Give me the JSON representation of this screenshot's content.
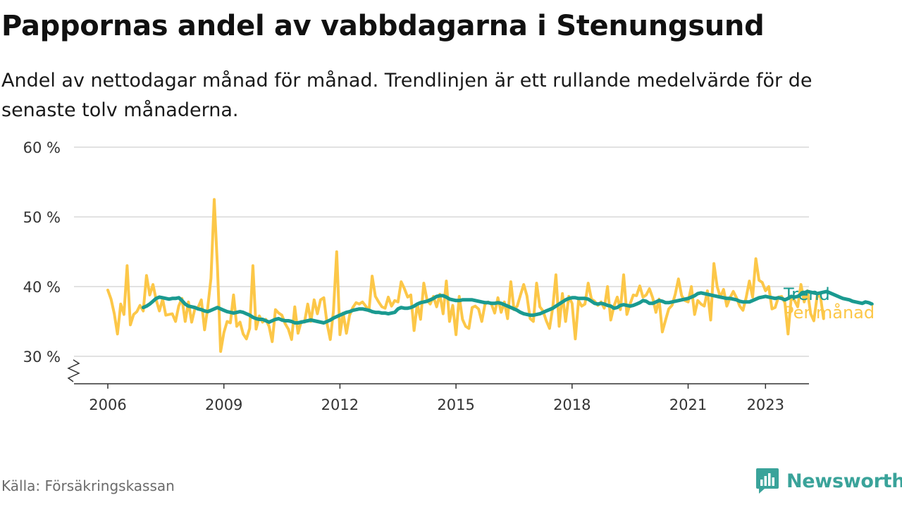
{
  "header": {
    "title": "Pappornas andel av vabbdagarna i Stenungsund",
    "subtitle": "Andel av nettodagar månad för månad. Trendlinjen är ett rullande medelvärde för de senaste tolv månaderna."
  },
  "footer": {
    "source": "Källa: Försäkringskassan",
    "brand": "Newsworthy",
    "brand_icon": "bar-chart-logo-icon"
  },
  "colors": {
    "monthly": "#fcc748",
    "trend": "#1a9a90",
    "grid": "#d9d9d9",
    "axis": "#333333",
    "brand": "#3aa39a"
  },
  "chart_data": {
    "type": "line",
    "title": "Pappornas andel av vabbdagarna i Stenungsund",
    "y_ticks": [
      30,
      40,
      50,
      60
    ],
    "y_tick_labels": [
      "30 %",
      "40 %",
      "50 %",
      "60 %"
    ],
    "ylim": [
      26,
      60
    ],
    "y_axis_break": true,
    "x_ticks": [
      2006,
      2009,
      2012,
      2015,
      2018,
      2021,
      2023
    ],
    "xlim": [
      2005.1,
      2024.2
    ],
    "grid": "horizontal",
    "legend": "inline labels at line ends, right",
    "series": [
      {
        "name": "Per månad",
        "start": 2006.0,
        "step_months": 1,
        "values": [
          39.5,
          38.2,
          36.1,
          33.2,
          37.5,
          36.0,
          43.0,
          34.5,
          36.0,
          36.4,
          37.3,
          36.5,
          41.6,
          38.8,
          40.3,
          38.1,
          36.5,
          38.2,
          35.9,
          36.0,
          36.1,
          35.0,
          37.2,
          38.3,
          35.0,
          37.8,
          34.9,
          36.8,
          37.0,
          38.1,
          33.8,
          37.0,
          41.2,
          52.5,
          43.0,
          30.7,
          33.4,
          35.0,
          34.8,
          38.8,
          34.3,
          34.9,
          33.2,
          32.5,
          34.0,
          43.0,
          33.9,
          35.8,
          34.9,
          35.3,
          34.3,
          32.1,
          36.7,
          36.2,
          35.9,
          34.7,
          33.9,
          32.4,
          37.1,
          33.3,
          35.0,
          34.9,
          37.5,
          35.0,
          38.1,
          36.1,
          38.1,
          38.4,
          34.7,
          32.4,
          36.5,
          45.0,
          33.1,
          36.2,
          33.3,
          35.9,
          37.0,
          37.7,
          37.5,
          37.8,
          37.2,
          36.5,
          41.5,
          38.6,
          37.8,
          37.1,
          36.9,
          38.5,
          37.2,
          38.0,
          37.8,
          40.7,
          39.7,
          38.5,
          38.8,
          33.7,
          37.5,
          35.3,
          40.5,
          38.1,
          37.5,
          38.6,
          37.1,
          38.9,
          36.1,
          40.8,
          35.0,
          37.3,
          33.1,
          38.6,
          35.3,
          34.3,
          34.0,
          37.0,
          37.2,
          36.8,
          35.0,
          37.5,
          37.8,
          37.5,
          36.2,
          38.4,
          36.3,
          37.8,
          35.4,
          40.7,
          36.7,
          37.2,
          38.8,
          40.3,
          38.7,
          35.4,
          35.0,
          40.5,
          37.1,
          36.5,
          35.1,
          34.0,
          37.0,
          41.7,
          34.3,
          39.0,
          35.0,
          38.6,
          37.6,
          32.5,
          38.0,
          37.2,
          37.5,
          40.5,
          38.2,
          37.9,
          37.3,
          37.8,
          36.9,
          40.0,
          35.2,
          37.2,
          38.5,
          36.7,
          41.7,
          36.0,
          37.5,
          38.8,
          38.7,
          40.1,
          38.5,
          38.8,
          39.7,
          38.4,
          36.3,
          38.2,
          33.5,
          35.2,
          36.8,
          37.3,
          38.9,
          41.1,
          38.7,
          38.0,
          37.8,
          40.0,
          36.0,
          38.0,
          37.5,
          37.2,
          39.4,
          35.2,
          43.3,
          40.0,
          38.5,
          39.6,
          37.2,
          38.4,
          39.3,
          38.4,
          37.2,
          36.6,
          38.4,
          40.8,
          38.5,
          44.0,
          40.9,
          40.6,
          39.4,
          40.0,
          36.8,
          37.0,
          38.5,
          38.6,
          37.7,
          33.2,
          38.5,
          38.0,
          37.1,
          40.3,
          37.8,
          39.4,
          36.1,
          35.1,
          38.6,
          38.7,
          35.4
        ]
      },
      {
        "name": "Trend",
        "start": 2006.917,
        "step_months": 1,
        "values": [
          37.0,
          37.2,
          37.5,
          37.9,
          38.3,
          38.5,
          38.4,
          38.3,
          38.2,
          38.3,
          38.3,
          38.4,
          38.0,
          37.5,
          37.2,
          37.1,
          37.0,
          36.8,
          36.7,
          36.5,
          36.4,
          36.6,
          36.8,
          37.0,
          36.8,
          36.6,
          36.4,
          36.3,
          36.2,
          36.3,
          36.4,
          36.3,
          36.1,
          35.9,
          35.6,
          35.4,
          35.3,
          35.3,
          35.1,
          34.9,
          35.1,
          35.3,
          35.4,
          35.2,
          35.1,
          35.1,
          35.0,
          34.8,
          34.8,
          34.9,
          35.0,
          35.1,
          35.2,
          35.1,
          35.0,
          34.9,
          34.8,
          35.0,
          35.2,
          35.5,
          35.7,
          35.9,
          36.1,
          36.3,
          36.4,
          36.6,
          36.7,
          36.8,
          36.8,
          36.7,
          36.6,
          36.4,
          36.3,
          36.3,
          36.2,
          36.2,
          36.1,
          36.2,
          36.3,
          36.8,
          37.0,
          36.9,
          36.9,
          37.0,
          37.2,
          37.5,
          37.7,
          37.8,
          37.9,
          38.1,
          38.3,
          38.6,
          38.7,
          38.7,
          38.5,
          38.2,
          38.1,
          38.0,
          38.0,
          38.1,
          38.1,
          38.1,
          38.1,
          38.0,
          37.9,
          37.8,
          37.7,
          37.7,
          37.6,
          37.6,
          37.7,
          37.6,
          37.4,
          37.2,
          37.0,
          36.8,
          36.6,
          36.3,
          36.1,
          36.0,
          35.9,
          35.9,
          36.0,
          36.1,
          36.3,
          36.5,
          36.7,
          36.9,
          37.2,
          37.5,
          37.8,
          38.1,
          38.3,
          38.4,
          38.4,
          38.3,
          38.3,
          38.3,
          38.2,
          37.9,
          37.6,
          37.5,
          37.6,
          37.5,
          37.3,
          37.2,
          36.9,
          37.0,
          37.3,
          37.4,
          37.3,
          37.2,
          37.3,
          37.5,
          37.7,
          38.0,
          37.9,
          37.6,
          37.6,
          37.8,
          38.0,
          37.9,
          37.7,
          37.7,
          37.8,
          37.9,
          38.0,
          38.1,
          38.2,
          38.3,
          38.5,
          38.7,
          39.0,
          39.1,
          39.0,
          38.9,
          38.8,
          38.7,
          38.6,
          38.5,
          38.4,
          38.3,
          38.3,
          38.2,
          38.1,
          37.9,
          37.8,
          37.8,
          37.8,
          38.0,
          38.2,
          38.4,
          38.5,
          38.6,
          38.5,
          38.4,
          38.3,
          38.4,
          38.3,
          38.1,
          38.3,
          38.6,
          38.5,
          38.6,
          38.9,
          39.1,
          39.3,
          39.2,
          39.1,
          39.0,
          39.1,
          39.2,
          39.3,
          39.1,
          38.9,
          38.7,
          38.5,
          38.3,
          38.2,
          38.1,
          37.9,
          37.8,
          37.7,
          37.6,
          37.8,
          37.7,
          37.5
        ]
      }
    ]
  }
}
